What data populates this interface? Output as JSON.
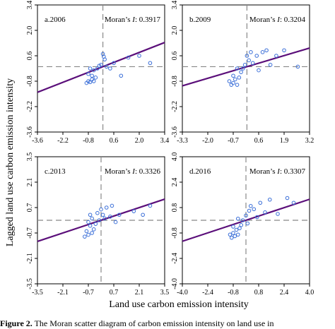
{
  "figure": {
    "ylabel": "Lagged land use carbon emission intensity",
    "xlabel": "Land use carbon emission intensity",
    "caption_label": "Figure 2.",
    "caption_text": " The Moran scatter diagram of carbon emission intensity on land use in"
  },
  "colors": {
    "axis": "#000000",
    "regression": "#5b0f7a",
    "points": "#3b6fd8",
    "dashed": "#888888"
  },
  "chart_data": [
    {
      "type": "scatter",
      "panel_label": "a.2006",
      "moran_text": "Moran’s I: 0.3917",
      "moran_I": 0.3917,
      "x_ticks": [
        "-3.6",
        "-2.2",
        "-0.8",
        "0.6",
        "2.0",
        "3.4"
      ],
      "y_ticks": [
        "3.4",
        "2.0",
        "0.6",
        "-0.8",
        "-2.2",
        "-3.6"
      ],
      "xlim": [
        -3.6,
        3.4
      ],
      "ylim": [
        -3.6,
        3.4
      ],
      "regression": {
        "slope": 0.3917,
        "intercept": 0.0
      },
      "points": [
        [
          -0.9,
          -0.9
        ],
        [
          -0.8,
          -0.8
        ],
        [
          -0.7,
          -0.85
        ],
        [
          -0.6,
          -0.7
        ],
        [
          -0.5,
          -0.8
        ],
        [
          -0.6,
          -0.5
        ],
        [
          -0.8,
          -0.4
        ],
        [
          -0.4,
          -0.6
        ],
        [
          -0.5,
          -0.2
        ],
        [
          -0.3,
          -0.1
        ],
        [
          -0.7,
          -0.1
        ],
        [
          -0.2,
          0.05
        ],
        [
          -0.1,
          0.1
        ],
        [
          0.05,
          0.55
        ],
        [
          0.0,
          0.7
        ],
        [
          0.1,
          0.4
        ],
        [
          0.2,
          0.0
        ],
        [
          0.4,
          -0.1
        ],
        [
          0.6,
          0.2
        ],
        [
          1.0,
          -0.5
        ],
        [
          1.4,
          0.5
        ],
        [
          2.0,
          0.6
        ],
        [
          2.6,
          0.2
        ]
      ]
    },
    {
      "type": "scatter",
      "panel_label": "b.2009",
      "moran_text": "Moran’s I: 0.3204",
      "moran_I": 0.3204,
      "x_ticks": [
        "-3.3",
        "-2.0",
        "-0.7",
        "0.6",
        "1.9",
        "3.2"
      ],
      "y_ticks": [
        "3.4",
        "2.0",
        "0.6",
        "-0.8",
        "-2.2",
        "-3.6"
      ],
      "xlim": [
        -3.3,
        3.2
      ],
      "ylim": [
        -3.6,
        3.4
      ],
      "regression": {
        "slope": 0.3204,
        "intercept": 0.0
      },
      "points": [
        [
          -0.9,
          -0.8
        ],
        [
          -0.8,
          -1.0
        ],
        [
          -0.7,
          -0.9
        ],
        [
          -0.6,
          -0.7
        ],
        [
          -0.5,
          -1.0
        ],
        [
          -0.7,
          -0.5
        ],
        [
          -0.4,
          -0.6
        ],
        [
          -0.3,
          -0.3
        ],
        [
          -0.2,
          -0.1
        ],
        [
          -0.5,
          -0.1
        ],
        [
          -0.1,
          0.1
        ],
        [
          0.0,
          0.6
        ],
        [
          0.1,
          0.35
        ],
        [
          0.2,
          0.8
        ],
        [
          0.3,
          0.2
        ],
        [
          0.5,
          0.6
        ],
        [
          0.6,
          -0.2
        ],
        [
          0.8,
          0.8
        ],
        [
          1.0,
          0.9
        ],
        [
          1.2,
          0.1
        ],
        [
          1.5,
          0.6
        ],
        [
          1.9,
          0.9
        ],
        [
          2.6,
          0.0
        ]
      ]
    },
    {
      "type": "scatter",
      "panel_label": "c.2013",
      "moran_text": "Moran’s I: 0.3326",
      "moran_I": 0.3326,
      "x_ticks": [
        "-3.5",
        "-2.1",
        "-0.7",
        "0.7",
        "2.1",
        "3.5"
      ],
      "y_ticks": [
        "3.5",
        "2.1",
        "0.7",
        "-0.7",
        "-2.1",
        "-3.5"
      ],
      "xlim": [
        -3.5,
        3.5
      ],
      "ylim": [
        -3.5,
        3.5
      ],
      "regression": {
        "slope": 0.3326,
        "intercept": 0.0
      },
      "points": [
        [
          -0.9,
          -0.9
        ],
        [
          -0.8,
          -0.6
        ],
        [
          -0.7,
          -0.8
        ],
        [
          -0.6,
          -0.3
        ],
        [
          -0.5,
          -0.7
        ],
        [
          -0.7,
          -0.1
        ],
        [
          -0.4,
          -0.5
        ],
        [
          -0.5,
          0.1
        ],
        [
          -0.3,
          -0.2
        ],
        [
          -0.6,
          0.3
        ],
        [
          -0.2,
          0.4
        ],
        [
          -0.1,
          0.0
        ],
        [
          0.0,
          0.6
        ],
        [
          0.1,
          0.3
        ],
        [
          0.2,
          0.1
        ],
        [
          0.3,
          0.7
        ],
        [
          0.5,
          0.2
        ],
        [
          0.6,
          0.8
        ],
        [
          0.8,
          -0.1
        ],
        [
          1.0,
          0.3
        ],
        [
          1.8,
          0.5
        ],
        [
          2.3,
          0.3
        ],
        [
          2.7,
          0.8
        ]
      ]
    },
    {
      "type": "scatter",
      "panel_label": "d.2016",
      "moran_text": "Moran’s I: 0.3307",
      "moran_I": 0.3307,
      "x_ticks": [
        "-4.0",
        "-2.4",
        "-0.8",
        "0.8",
        "2.4",
        "4.0"
      ],
      "y_ticks": [
        "4.0",
        "2.4",
        "0.8",
        "-0.8",
        "-2.4",
        "-4.0"
      ],
      "xlim": [
        -4.0,
        4.0
      ],
      "ylim": [
        -4.0,
        4.0
      ],
      "regression": {
        "slope": 0.3307,
        "intercept": 0.0
      },
      "points": [
        [
          -1.0,
          -0.9
        ],
        [
          -0.9,
          -1.1
        ],
        [
          -0.8,
          -0.8
        ],
        [
          -0.7,
          -1.0
        ],
        [
          -0.6,
          -0.6
        ],
        [
          -0.5,
          -0.9
        ],
        [
          -0.4,
          -0.5
        ],
        [
          -0.8,
          -0.4
        ],
        [
          -0.3,
          -0.3
        ],
        [
          -0.2,
          0.0
        ],
        [
          -0.5,
          0.1
        ],
        [
          0.0,
          0.3
        ],
        [
          0.1,
          -0.2
        ],
        [
          0.2,
          0.6
        ],
        [
          0.3,
          0.9
        ],
        [
          0.5,
          0.7
        ],
        [
          0.7,
          0.2
        ],
        [
          0.9,
          1.1
        ],
        [
          1.2,
          0.5
        ],
        [
          1.5,
          1.3
        ],
        [
          2.0,
          0.4
        ],
        [
          2.6,
          1.4
        ],
        [
          3.0,
          1.1
        ]
      ]
    }
  ]
}
